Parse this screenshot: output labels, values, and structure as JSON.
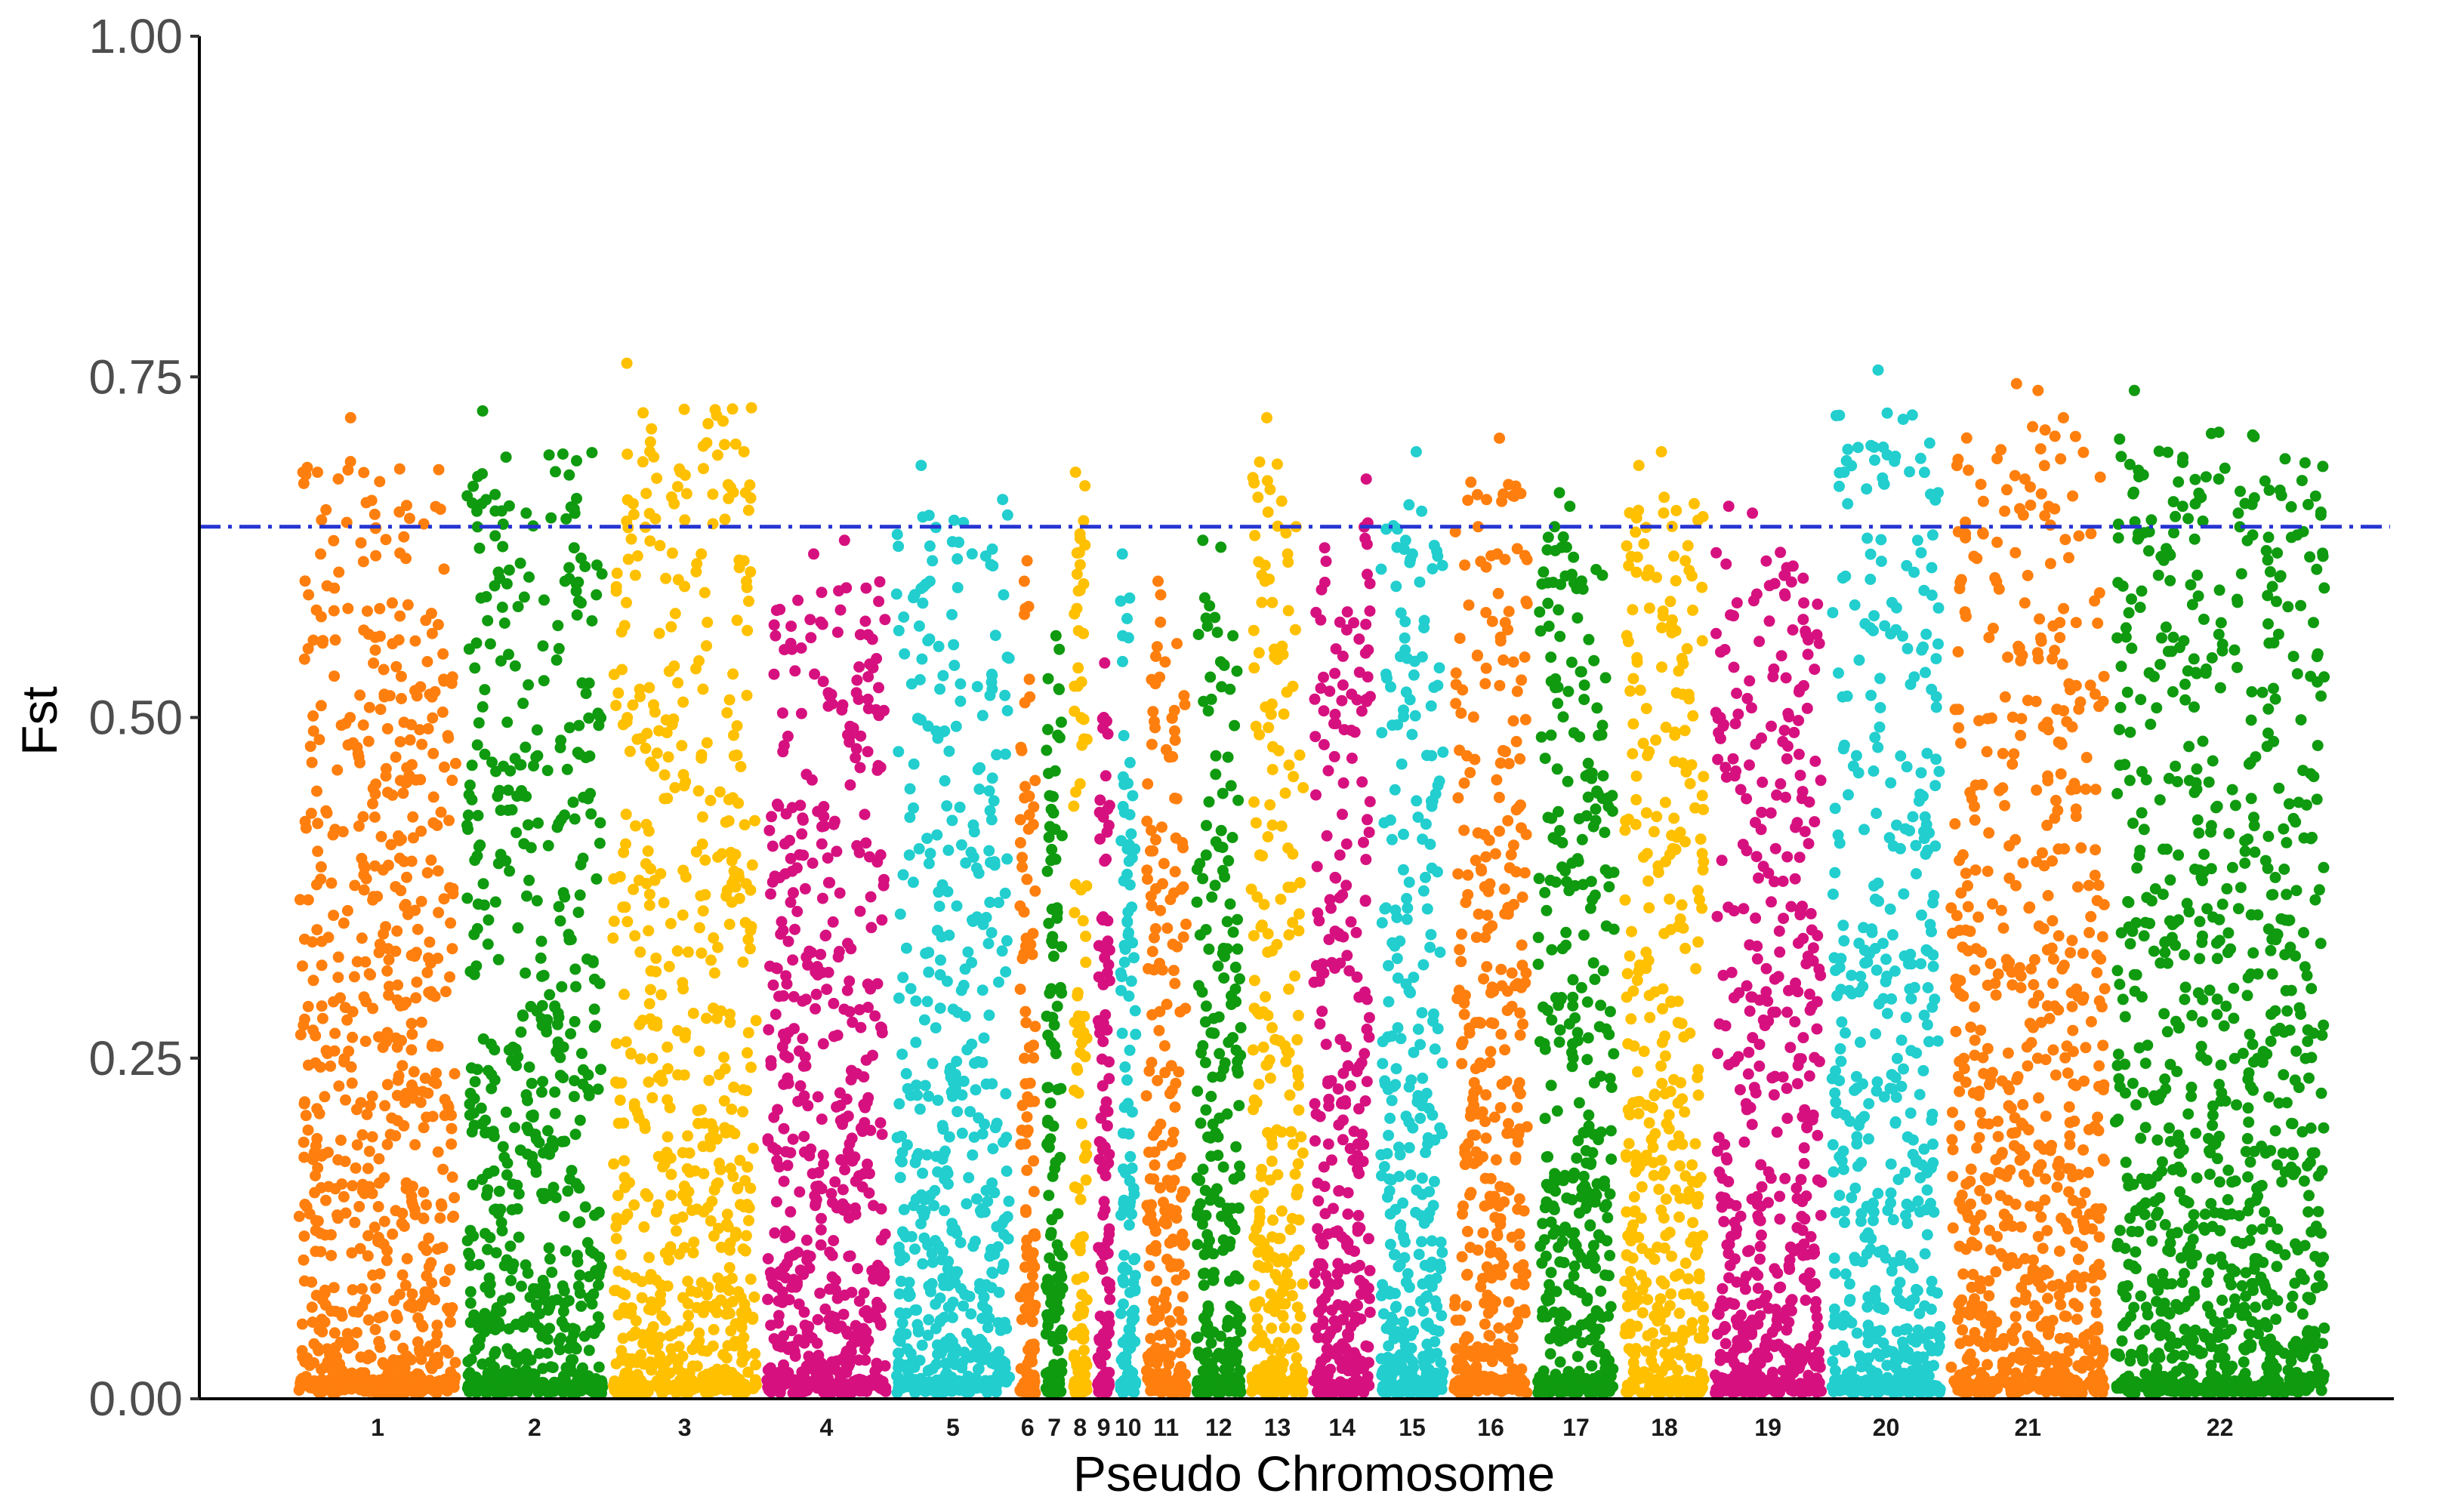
{
  "chart_data": {
    "type": "scatter",
    "subtype": "manhattan",
    "xlabel": "Pseudo Chromosome",
    "ylabel": "Fst",
    "ylim": [
      0,
      1
    ],
    "yticks": [
      "0.00",
      "0.25",
      "0.50",
      "0.75",
      "1.00"
    ],
    "threshold": {
      "value": 0.64,
      "style": "dash-dot",
      "color": "#2634d1"
    },
    "grid": false,
    "legend": "none",
    "palette": [
      "#ff7f0e",
      "#0f9a0f",
      "#ffc000",
      "#d6117f",
      "#22cece"
    ],
    "categories": [
      "1",
      "2",
      "3",
      "4",
      "5",
      "6",
      "7",
      "8",
      "9",
      "10",
      "11",
      "12",
      "13",
      "14",
      "15",
      "16",
      "17",
      "18",
      "19",
      "20",
      "21",
      "22"
    ],
    "series": [
      {
        "name": "1",
        "max": 0.72,
        "peaks": [
          0.72,
          0.68,
          0.68,
          0.645,
          0.59,
          0.58
        ]
      },
      {
        "name": "2",
        "max": 0.725,
        "peaks": [
          0.725,
          0.65,
          0.61,
          0.6,
          0.59
        ]
      },
      {
        "name": "3",
        "max": 0.76,
        "peaks": [
          0.76,
          0.665,
          0.645,
          0.62,
          0.615,
          0.6
        ]
      },
      {
        "name": "4",
        "max": 0.63,
        "peaks": [
          0.63,
          0.62,
          0.56,
          0.55
        ]
      },
      {
        "name": "5",
        "max": 0.685,
        "peaks": [
          0.685,
          0.66,
          0.615,
          0.6,
          0.59
        ]
      },
      {
        "name": "6",
        "max": 0.615,
        "peaks": [
          0.615,
          0.6,
          0.58
        ]
      },
      {
        "name": "7",
        "max": 0.56,
        "peaks": [
          0.56,
          0.55
        ]
      },
      {
        "name": "8",
        "max": 0.68,
        "peaks": [
          0.68,
          0.67,
          0.58
        ]
      },
      {
        "name": "9",
        "max": 0.54,
        "peaks": [
          0.54,
          0.5
        ]
      },
      {
        "name": "10",
        "max": 0.62,
        "peaks": [
          0.62,
          0.56
        ]
      },
      {
        "name": "11",
        "max": 0.6,
        "peaks": [
          0.6,
          0.59,
          0.57
        ]
      },
      {
        "name": "12",
        "max": 0.63,
        "peaks": [
          0.63,
          0.625,
          0.56
        ]
      },
      {
        "name": "13",
        "max": 0.72,
        "peaks": [
          0.72,
          0.64,
          0.62,
          0.6
        ]
      },
      {
        "name": "14",
        "max": 0.675,
        "peaks": [
          0.675,
          0.57
        ]
      },
      {
        "name": "15",
        "max": 0.695,
        "peaks": [
          0.695,
          0.63,
          0.62
        ]
      },
      {
        "name": "16",
        "max": 0.705,
        "peaks": [
          0.705,
          0.64,
          0.62
        ]
      },
      {
        "name": "17",
        "max": 0.665,
        "peaks": [
          0.665,
          0.655,
          0.64,
          0.625
        ]
      },
      {
        "name": "18",
        "max": 0.695,
        "peaks": [
          0.695,
          0.685,
          0.615
        ]
      },
      {
        "name": "19",
        "max": 0.655,
        "peaks": [
          0.655,
          0.65,
          0.61
        ]
      },
      {
        "name": "20",
        "max": 0.755,
        "peaks": [
          0.755,
          0.68,
          0.665,
          0.63,
          0.61
        ]
      },
      {
        "name": "21",
        "max": 0.745,
        "peaks": [
          0.745,
          0.74,
          0.72,
          0.69,
          0.675,
          0.635
        ]
      },
      {
        "name": "22",
        "max": 0.74,
        "peaks": [
          0.74,
          0.675,
          0.655,
          0.65,
          0.645,
          0.635
        ]
      }
    ]
  }
}
